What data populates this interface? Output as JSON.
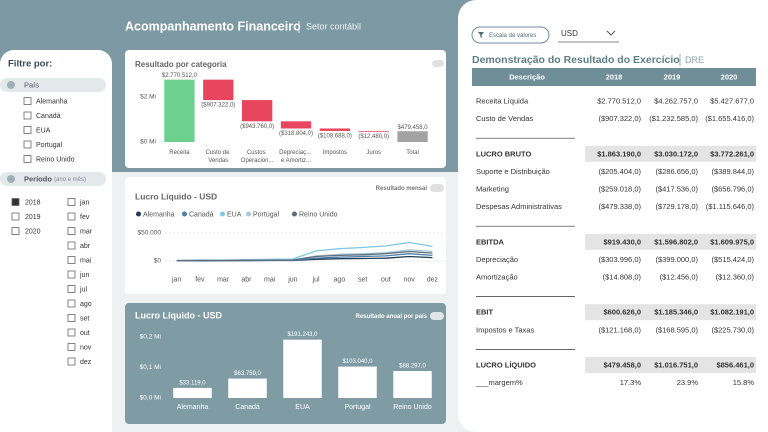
{
  "header": {
    "title": "Acompanhamento Financeiro",
    "subtitle": "Setor contábil"
  },
  "filters": {
    "title": "Filtre por:",
    "country_label": "País",
    "countries": [
      "Alemanha",
      "Canadá",
      "EUA",
      "Portugal",
      "Reino Unido"
    ],
    "period_label": "Período",
    "period_hint": "(ano e mês)",
    "years": [
      "2018",
      "2019",
      "2020"
    ],
    "years_checked": [
      true,
      false,
      false
    ],
    "months": [
      "jan",
      "fev",
      "mar",
      "abr",
      "mai",
      "jun",
      "jul",
      "ago",
      "set",
      "out",
      "nov",
      "dez"
    ]
  },
  "chart_data": [
    {
      "type": "waterfall",
      "title": "Resultado por categoria",
      "categories": [
        "Receita",
        "Custo de Vendas",
        "Custos Operacion...",
        "Depreciaç... e Amortiz...",
        "Impostos",
        "Juros",
        "Total"
      ],
      "values": [
        2770512,
        -907322,
        -943760,
        -318804,
        -108688,
        -12480,
        479458
      ],
      "value_labels": [
        "$2.770.512,0",
        "($907.322,0)",
        "($943.760,0)",
        "($318.804,0)",
        "($108.688,0)",
        "($12.480,0)",
        "$479.458,0"
      ],
      "colors": {
        "increase": "#6dd08e",
        "decrease": "#e8465e",
        "total": "#a3a3a3"
      },
      "ylim": [
        0,
        3000000
      ],
      "yticks": [
        {
          "value": 0,
          "label": "$0 Mi"
        },
        {
          "value": 2000000,
          "label": "$2 Mi"
        }
      ]
    },
    {
      "type": "line",
      "title": "Lucro Líquido - USD",
      "button": "Resultado mensal",
      "categories": [
        "jan",
        "fev",
        "mar",
        "abr",
        "mai",
        "jun",
        "jul",
        "ago",
        "set",
        "out",
        "nov",
        "dez"
      ],
      "series": [
        {
          "name": "Alemanha",
          "color": "#1f3b57",
          "values": [
            200,
            400,
            500,
            600,
            800,
            900,
            3000,
            4000,
            4500,
            5000,
            8000,
            6000
          ]
        },
        {
          "name": "Canadá",
          "color": "#4a7fa8",
          "values": [
            300,
            600,
            700,
            900,
            1200,
            1300,
            5000,
            7000,
            8000,
            9000,
            13000,
            10000
          ]
        },
        {
          "name": "EUA",
          "color": "#7ec8e3",
          "values": [
            1000,
            2000,
            1500,
            2500,
            3000,
            3500,
            18000,
            22000,
            24000,
            27000,
            33000,
            26000
          ]
        },
        {
          "name": "Portugal",
          "color": "#a9c9dc",
          "values": [
            500,
            1000,
            1000,
            1500,
            2000,
            2000,
            9000,
            12000,
            13000,
            15000,
            20000,
            17000
          ]
        },
        {
          "name": "Reino Unido",
          "color": "#5e6b7a",
          "values": [
            500,
            800,
            1000,
            1200,
            1500,
            1800,
            8000,
            10000,
            11000,
            13000,
            17000,
            14000
          ]
        }
      ],
      "ylim": [
        -7000,
        70000
      ],
      "yticks": [
        {
          "value": 0,
          "label": "$0"
        },
        {
          "value": 50000,
          "label": "$50.000"
        }
      ],
      "grid": true
    },
    {
      "type": "bar",
      "title": "Lucro Líquido - USD",
      "badge": "Resultado anual por país",
      "categories": [
        "Alemanha",
        "Canadá",
        "EUA",
        "Portugal",
        "Reino Unido"
      ],
      "values": [
        33119,
        63759,
        191243,
        103040,
        88297
      ],
      "value_labels": [
        "$33.119,0",
        "$63.759,0",
        "$191.243,0",
        "$103.040,0",
        "$88.297,0"
      ],
      "color": "#ffffff",
      "ylim": [
        0,
        220000
      ],
      "yticks": [
        {
          "value": 0,
          "label": "$0,0 Mi"
        },
        {
          "value": 100000,
          "label": "$0,1 Mi"
        },
        {
          "value": 200000,
          "label": "$0,2 Mi"
        }
      ]
    }
  ],
  "table": {
    "scale_button": "Escala de valores",
    "currency": "USD",
    "title": "Demonstração do Resultado do Exercício",
    "tag": "DRE",
    "columns": [
      "Descrição",
      "2018",
      "2019",
      "2020"
    ],
    "rows": [
      [
        "Receita Líquida",
        "$2.770.512,0",
        "$4.262.757,0",
        "$5.427.677,0"
      ],
      [
        "Custo de Vendas",
        "($907.322,0)",
        "($1.232.585,0)",
        "($1.655.416,0)"
      ],
      [
        "LUCRO BRUTO",
        "$1.863.190,0",
        "$3.030.172,0",
        "$3.772.261,0"
      ],
      [
        "Suporte e Distribuição",
        "($205.404,0)",
        "($286.656,0)",
        "($389.844,0)"
      ],
      [
        "Marketing",
        "($259.018,0)",
        "($417.536,0)",
        "($656.796,0)"
      ],
      [
        "Despesas Administrativas",
        "($479.338,0)",
        "($729.178,0)",
        "($1.115.646,0)"
      ],
      [
        "EBITDA",
        "$919.430,0",
        "$1.596.802,0",
        "$1.609.975,0"
      ],
      [
        "Depreciação",
        "($303.996,0)",
        "($399.000,0)",
        "($515.424,0)"
      ],
      [
        "Amortização",
        "($14.808,0)",
        "($12.456,0)",
        "($12.360,0)"
      ],
      [
        "EBIT",
        "$600.626,0",
        "$1.185.346,0",
        "$1.082.191,0"
      ],
      [
        "Impostos e Taxas",
        "($121.168,0)",
        "($168.595,0)",
        "($225.730,0)"
      ],
      [
        "LUCRO LÍQUIDO",
        "$479.458,0",
        "$1.016.751,0",
        "$856.461,0"
      ],
      [
        "___margem%",
        "17.3%",
        "23.9%",
        "15.8%"
      ]
    ]
  }
}
